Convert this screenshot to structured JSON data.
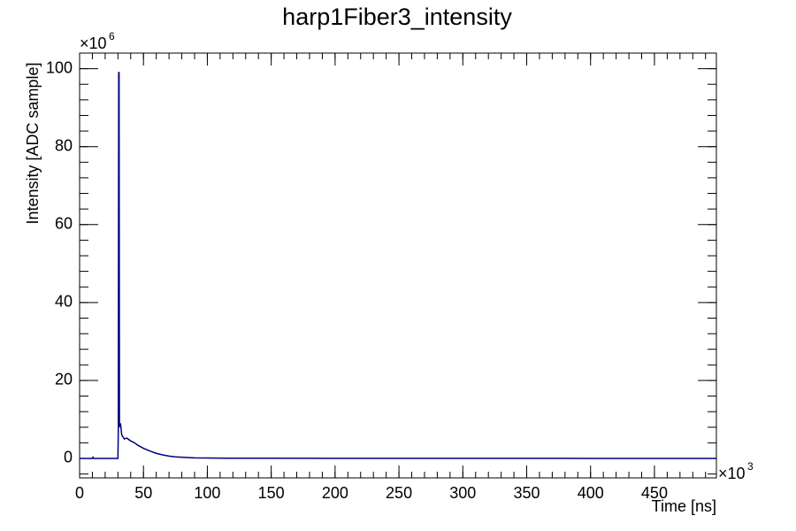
{
  "chart_data": {
    "type": "line",
    "title": "harp1Fiber3_intensity",
    "x_label": "Time [ns]",
    "y_label": "Intensity [ADC sample]",
    "x_multiplier": {
      "base": "×10",
      "exponent": "3"
    },
    "y_multiplier": {
      "base": "×10",
      "exponent": "6"
    },
    "xlim": [
      0,
      498.5
    ],
    "ylim": [
      -5,
      104
    ],
    "xticks": [
      0,
      50,
      100,
      150,
      200,
      250,
      300,
      350,
      400,
      450
    ],
    "yticks": [
      0,
      20,
      40,
      60,
      80,
      100
    ],
    "grid": false,
    "series": [
      {
        "name": "harp1Fiber3_intensity",
        "color": "#000080",
        "x": [
          0,
          10,
          10.5,
          11,
          30,
          30.3,
          30.6,
          30.9,
          31.2,
          31.5,
          32,
          33,
          34,
          35,
          37,
          40,
          43,
          46,
          50,
          55,
          60,
          65,
          70,
          75,
          80,
          90,
          100,
          120,
          150,
          200,
          300,
          400,
          498.5
        ],
        "values": [
          0,
          0,
          0.3,
          0,
          0,
          7,
          99,
          99,
          9,
          8,
          9,
          6,
          5.5,
          5,
          5.2,
          4.5,
          4,
          3.3,
          2.6,
          1.9,
          1.3,
          0.9,
          0.6,
          0.4,
          0.3,
          0.15,
          0.1,
          0.05,
          0.05,
          0.03,
          0.02,
          0.01,
          0
        ]
      }
    ]
  }
}
